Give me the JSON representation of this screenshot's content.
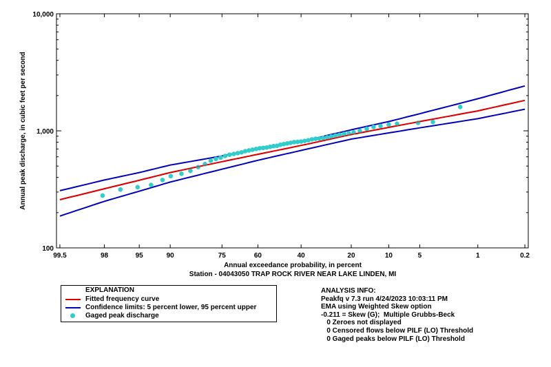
{
  "chart_data": {
    "type": "scatter",
    "title": "",
    "xlabel": "Annual exceedance probability, in percent",
    "ylabel": "Annual peak discharge, in cubic feet per second",
    "station": "Station - 04043050  TRAP ROCK RIVER NEAR LAKE LINDEN, MI",
    "x_scale": "normal-probability (reversed)",
    "y_scale": "log",
    "xlim": [
      99.5,
      0.2
    ],
    "ylim": [
      100,
      10000
    ],
    "x_ticks": [
      99.5,
      98,
      95,
      90,
      75,
      60,
      40,
      20,
      10,
      5,
      1,
      0.2
    ],
    "x_tick_labels": [
      "99.5",
      "98",
      "95",
      "90",
      "75",
      "60",
      "40",
      "20",
      "10",
      "5",
      "1",
      "0.2"
    ],
    "y_ticks": [
      100,
      1000,
      10000
    ],
    "y_tick_labels": [
      "100",
      "1,000",
      "10,000"
    ],
    "grid": false,
    "series": [
      {
        "name": "Fitted frequency curve",
        "color": "#dd0000",
        "kind": "line",
        "x": [
          99.5,
          98,
          95,
          90,
          75,
          60,
          40,
          20,
          10,
          5,
          1,
          0.2
        ],
        "y": [
          258,
          320,
          378,
          440,
          545,
          630,
          750,
          930,
          1070,
          1200,
          1480,
          1820
        ]
      },
      {
        "name": "Confidence limits: 5 percent lower",
        "color": "#0000bb",
        "kind": "line",
        "x": [
          99.5,
          98,
          95,
          90,
          75,
          60,
          40,
          20,
          10,
          5,
          1,
          0.2
        ],
        "y": [
          187,
          250,
          305,
          365,
          470,
          560,
          680,
          850,
          960,
          1060,
          1270,
          1530
        ]
      },
      {
        "name": "Confidence limits: 95 percent upper",
        "color": "#0000bb",
        "kind": "line",
        "x": [
          99.5,
          98,
          95,
          90,
          75,
          60,
          40,
          20,
          10,
          5,
          1,
          0.2
        ],
        "y": [
          308,
          380,
          440,
          510,
          610,
          700,
          810,
          1020,
          1200,
          1400,
          1880,
          2420
        ]
      },
      {
        "name": "Gaged peak discharge",
        "color": "#33cccc",
        "kind": "points",
        "x": [
          98.1,
          96.9,
          95.2,
          93.4,
          91.5,
          89.9,
          87.5,
          85.2,
          83.0,
          80.9,
          79.0,
          77.2,
          75.5,
          73.8,
          72.1,
          70.4,
          68.8,
          67.2,
          65.6,
          64.0,
          62.4,
          60.8,
          59.2,
          57.6,
          56.0,
          54.4,
          52.8,
          51.2,
          49.6,
          48.0,
          46.4,
          44.8,
          43.2,
          41.6,
          40.0,
          38.4,
          36.8,
          35.2,
          33.6,
          32.0,
          30.4,
          28.8,
          27.2,
          25.6,
          24.0,
          22.4,
          20.8,
          19.2,
          17.3,
          15.3,
          13.5,
          11.8,
          10.0,
          8.4,
          5.2,
          3.6,
          1.7
        ],
        "y": [
          280,
          315,
          330,
          345,
          380,
          410,
          430,
          455,
          490,
          520,
          555,
          575,
          590,
          610,
          625,
          635,
          645,
          655,
          670,
          680,
          690,
          700,
          710,
          715,
          720,
          730,
          740,
          745,
          760,
          770,
          780,
          790,
          800,
          805,
          810,
          820,
          830,
          845,
          855,
          860,
          870,
          880,
          895,
          910,
          925,
          940,
          955,
          970,
          1000,
          1040,
          1080,
          1100,
          1130,
          1150,
          1170,
          1190,
          1600
        ]
      }
    ]
  },
  "legend": {
    "title": "EXPLANATION",
    "items": [
      {
        "label": "Fitted frequency curve",
        "color": "#dd0000",
        "kind": "line"
      },
      {
        "label": "Confidence limits: 5 percent lower, 95 percent upper",
        "color": "#0000bb",
        "kind": "line"
      },
      {
        "label": "Gaged peak discharge",
        "color": "#33cccc",
        "kind": "dot"
      }
    ]
  },
  "analysis": {
    "title": "ANALYSIS INFO:",
    "lines": [
      "Peakfq v 7.3 run 4/24/2023 10:03:11 PM",
      "EMA using Weighted Skew option",
      "-0.211 = Skew (G);  Multiple Grubbs-Beck",
      "   0 Zeroes not displayed",
      "   0 Censored flows below PILF (LO) Threshold",
      "   0 Gaged peaks below PILF (LO) Threshold"
    ]
  }
}
